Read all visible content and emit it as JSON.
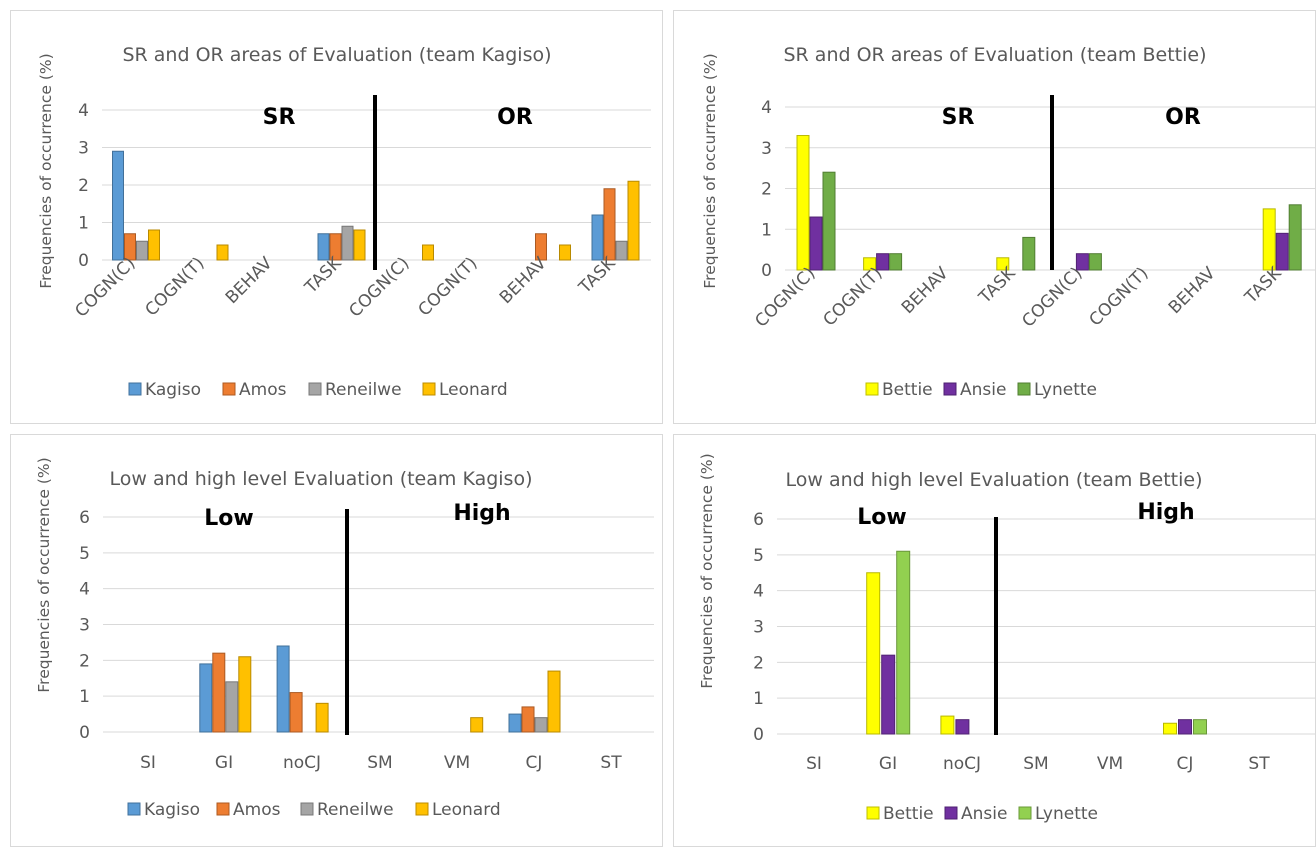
{
  "charts": [
    {
      "title": "SR and OR areas of Evaluation (team Kagiso)",
      "ylabel": "Frequencies of occurrence (%)",
      "y_ticks": [
        "0",
        "1",
        "2",
        "3",
        "4"
      ],
      "category_labels": [
        "COGN(C)",
        "COGN(T)",
        "BEHAV",
        "TASK",
        "COGN(C)",
        "COGN(T)",
        "BEHAV",
        "TASK"
      ],
      "group_labels": [
        "SR",
        "OR"
      ],
      "legend": [
        "Kagiso",
        "Amos",
        "Reneilwe",
        "Leonard"
      ]
    },
    {
      "title": "SR and OR areas of Evaluation (team Bettie)",
      "ylabel": "Frequencies of occurrence (%)",
      "y_ticks": [
        "0",
        "1",
        "2",
        "3",
        "4"
      ],
      "category_labels": [
        "COGN(C)",
        "COGN(T)",
        "BEHAV",
        "TASK",
        "COGN(C)",
        "COGN(T)",
        "BEHAV",
        "TASK"
      ],
      "group_labels": [
        "SR",
        "OR"
      ],
      "legend": [
        "Bettie",
        "Ansie",
        "Lynette"
      ]
    },
    {
      "title": "Low and high level Evaluation (team Kagiso)",
      "ylabel": "Frequencies of occurrence (%)",
      "y_ticks": [
        "0",
        "1",
        "2",
        "3",
        "4",
        "5",
        "6"
      ],
      "category_labels": [
        "SI",
        "GI",
        "noCJ",
        "SM",
        "VM",
        "CJ",
        "ST"
      ],
      "group_labels": [
        "Low",
        "High"
      ],
      "legend": [
        "Kagiso",
        "Amos",
        "Reneilwe",
        "Leonard"
      ]
    },
    {
      "title": "Low and high level Evaluation (team Bettie)",
      "ylabel": "Frequencies of occurrence (%)",
      "y_ticks": [
        "0",
        "1",
        "2",
        "3",
        "4",
        "5",
        "6"
      ],
      "category_labels": [
        "SI",
        "GI",
        "noCJ",
        "SM",
        "VM",
        "CJ",
        "ST"
      ],
      "group_labels": [
        "Low",
        "High"
      ],
      "legend": [
        "Bettie",
        "Ansie",
        "Lynette"
      ]
    }
  ],
  "chart_data": [
    {
      "type": "bar",
      "title": "SR and OR areas of Evaluation (team Kagiso)",
      "ylabel": "Frequencies of occurrence (%)",
      "ylim": [
        0,
        4
      ],
      "grid": true,
      "legend_position": "bottom",
      "categories": [
        "COGN(C)",
        "COGN(T)",
        "BEHAV",
        "TASK",
        "COGN(C)",
        "COGN(T)",
        "BEHAV",
        "TASK"
      ],
      "groups": [
        "SR",
        "OR"
      ],
      "series": [
        {
          "name": "Kagiso",
          "color": "#5b9bd5",
          "values": [
            2.9,
            0,
            0,
            0.7,
            0,
            0,
            0,
            1.2
          ]
        },
        {
          "name": "Amos",
          "color": "#ed7d31",
          "values": [
            0.7,
            0,
            0,
            0.7,
            0,
            0,
            0.7,
            1.9
          ]
        },
        {
          "name": "Reneilwe",
          "color": "#a5a5a5",
          "values": [
            0.5,
            0,
            0,
            0.9,
            0,
            0,
            0,
            0.5
          ]
        },
        {
          "name": "Leonard",
          "color": "#ffc000",
          "values": [
            0.8,
            0.4,
            0,
            0.8,
            0.4,
            0,
            0.4,
            2.1
          ]
        }
      ]
    },
    {
      "type": "bar",
      "title": "SR and OR areas of Evaluation (team Bettie)",
      "ylabel": "Frequencies of occurrence (%)",
      "ylim": [
        0,
        4
      ],
      "grid": true,
      "legend_position": "bottom",
      "categories": [
        "COGN(C)",
        "COGN(T)",
        "BEHAV",
        "TASK",
        "COGN(C)",
        "COGN(T)",
        "BEHAV",
        "TASK"
      ],
      "groups": [
        "SR",
        "OR"
      ],
      "series": [
        {
          "name": "Bettie",
          "color": "#ffff00",
          "values": [
            3.3,
            0.3,
            0,
            0.3,
            0,
            0,
            0,
            1.5
          ]
        },
        {
          "name": "Ansie",
          "color": "#7030a0",
          "values": [
            1.3,
            0.4,
            0,
            0,
            0.4,
            0,
            0,
            0.9
          ]
        },
        {
          "name": "Lynette",
          "color": "#70ad47",
          "values": [
            2.4,
            0.4,
            0,
            0.8,
            0.4,
            0,
            0,
            1.6
          ]
        }
      ]
    },
    {
      "type": "bar",
      "title": "Low and high level Evaluation (team Kagiso)",
      "ylabel": "Frequencies of occurrence (%)",
      "ylim": [
        0,
        6
      ],
      "grid": true,
      "legend_position": "bottom",
      "categories": [
        "SI",
        "GI",
        "noCJ",
        "SM",
        "VM",
        "CJ",
        "ST"
      ],
      "groups": [
        "Low",
        "High"
      ],
      "series": [
        {
          "name": "Kagiso",
          "color": "#5b9bd5",
          "values": [
            0,
            1.9,
            2.4,
            0,
            0,
            0.5,
            0
          ]
        },
        {
          "name": "Amos",
          "color": "#ed7d31",
          "values": [
            0,
            2.2,
            1.1,
            0,
            0,
            0.7,
            0
          ]
        },
        {
          "name": "Reneilwe",
          "color": "#a5a5a5",
          "values": [
            0,
            1.4,
            0,
            0,
            0,
            0.4,
            0
          ]
        },
        {
          "name": "Leonard",
          "color": "#ffc000",
          "values": [
            0,
            2.1,
            0.8,
            0,
            0.4,
            1.7,
            0
          ]
        }
      ]
    },
    {
      "type": "bar",
      "title": "Low and high level Evaluation (team Bettie)",
      "ylabel": "Frequencies of occurrence (%)",
      "ylim": [
        0,
        6
      ],
      "grid": true,
      "legend_position": "bottom",
      "categories": [
        "SI",
        "GI",
        "noCJ",
        "SM",
        "VM",
        "CJ",
        "ST"
      ],
      "groups": [
        "Low",
        "High"
      ],
      "series": [
        {
          "name": "Bettie",
          "color": "#ffff00",
          "values": [
            0,
            4.5,
            0.5,
            0,
            0,
            0.3,
            0
          ]
        },
        {
          "name": "Ansie",
          "color": "#7030a0",
          "values": [
            0,
            2.2,
            0.4,
            0,
            0,
            0.4,
            0
          ]
        },
        {
          "name": "Lynette",
          "color": "#92d050",
          "values": [
            0,
            5.1,
            0,
            0,
            0,
            0.4,
            0
          ]
        }
      ]
    }
  ]
}
